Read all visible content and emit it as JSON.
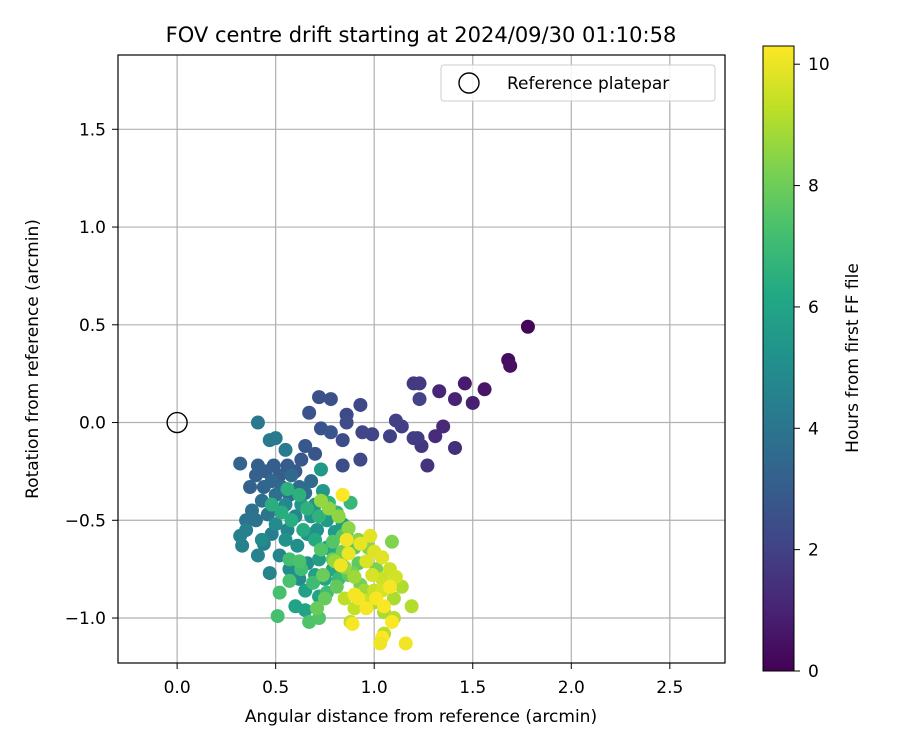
{
  "chart_data": {
    "type": "scatter",
    "title": "FOV centre drift starting at 2024/09/30 01:10:58",
    "xlabel": "Angular distance from reference (arcmin)",
    "ylabel": "Rotation from reference (arcmin)",
    "xlim": [
      -0.3,
      2.78
    ],
    "ylim": [
      -1.23,
      1.88
    ],
    "xticks": [
      "0.0",
      "0.5",
      "1.0",
      "1.5",
      "2.0",
      "2.5"
    ],
    "xtick_values": [
      0.0,
      0.5,
      1.0,
      1.5,
      2.0,
      2.5
    ],
    "yticks": [
      "−1.0",
      "−0.5",
      "0.0",
      "0.5",
      "1.0",
      "1.5"
    ],
    "ytick_values": [
      -1.0,
      -0.5,
      0.0,
      0.5,
      1.0,
      1.5
    ],
    "grid": true,
    "legend": {
      "placement": "top-right",
      "entries": [
        "Reference platepar"
      ]
    },
    "reference_point": {
      "x": 0.0,
      "y": 0.0,
      "style": "hollow-circle"
    },
    "colorbar": {
      "label": "Hours from first FF file",
      "min": 0,
      "max": 10.3,
      "ticks": [
        "0",
        "2",
        "4",
        "6",
        "8",
        "10"
      ],
      "tick_values": [
        0,
        2,
        4,
        6,
        8,
        10
      ],
      "colormap": "viridis"
    },
    "series": [
      {
        "points": [
          [
            1.78,
            0.49,
            0.1
          ],
          [
            1.68,
            0.32,
            0.3
          ],
          [
            1.69,
            0.29,
            0.4
          ],
          [
            1.56,
            0.17,
            0.6
          ],
          [
            1.46,
            0.2,
            0.8
          ],
          [
            1.5,
            0.1,
            0.9
          ],
          [
            1.41,
            0.12,
            1.0
          ],
          [
            1.33,
            0.16,
            1.1
          ],
          [
            1.35,
            -0.02,
            1.2
          ],
          [
            1.31,
            -0.07,
            1.3
          ],
          [
            1.41,
            -0.13,
            1.4
          ],
          [
            1.27,
            -0.22,
            1.5
          ],
          [
            1.24,
            -0.12,
            1.6
          ],
          [
            1.2,
            0.2,
            1.7
          ],
          [
            1.23,
            0.2,
            1.75
          ],
          [
            1.22,
            -0.08,
            1.8
          ],
          [
            1.2,
            -0.08,
            1.85
          ],
          [
            1.14,
            -0.02,
            1.9
          ],
          [
            1.11,
            0.01,
            1.95
          ],
          [
            1.08,
            -0.07,
            2.0
          ],
          [
            1.23,
            0.12,
            2.05
          ],
          [
            0.99,
            -0.06,
            2.1
          ],
          [
            0.94,
            -0.05,
            2.15
          ],
          [
            0.93,
            0.09,
            2.2
          ],
          [
            0.93,
            -0.19,
            2.25
          ],
          [
            0.86,
            0.04,
            2.3
          ],
          [
            0.86,
            0.0,
            2.35
          ],
          [
            0.84,
            -0.09,
            2.4
          ],
          [
            0.84,
            -0.22,
            2.45
          ],
          [
            0.78,
            0.12,
            2.5
          ],
          [
            0.72,
            0.13,
            2.55
          ],
          [
            0.67,
            0.05,
            2.6
          ],
          [
            0.73,
            -0.03,
            2.65
          ],
          [
            0.78,
            -0.05,
            2.7
          ],
          [
            0.7,
            -0.16,
            2.75
          ],
          [
            0.65,
            -0.12,
            2.8
          ],
          [
            0.63,
            -0.19,
            2.85
          ],
          [
            0.6,
            -0.25,
            2.9
          ],
          [
            0.56,
            -0.22,
            2.95
          ],
          [
            0.52,
            -0.27,
            3.0
          ],
          [
            0.49,
            -0.22,
            3.05
          ],
          [
            0.45,
            -0.25,
            3.1
          ],
          [
            0.41,
            -0.22,
            3.15
          ],
          [
            0.4,
            -0.27,
            3.2
          ],
          [
            0.37,
            -0.33,
            3.25
          ],
          [
            0.32,
            -0.21,
            3.3
          ],
          [
            0.44,
            -0.33,
            3.35
          ],
          [
            0.48,
            -0.3,
            3.4
          ],
          [
            0.53,
            -0.33,
            3.45
          ],
          [
            0.58,
            -0.27,
            3.5
          ],
          [
            0.62,
            -0.33,
            3.55
          ],
          [
            0.68,
            -0.3,
            3.6
          ],
          [
            0.65,
            -0.36,
            3.65
          ],
          [
            0.57,
            -0.37,
            3.7
          ],
          [
            0.5,
            -0.37,
            3.75
          ],
          [
            0.43,
            -0.4,
            3.8
          ],
          [
            0.38,
            -0.45,
            3.85
          ],
          [
            0.35,
            -0.5,
            3.9
          ],
          [
            0.4,
            -0.5,
            3.95
          ],
          [
            0.46,
            -0.47,
            4.0
          ],
          [
            0.52,
            -0.45,
            4.05
          ],
          [
            0.41,
            0.0,
            4.1
          ],
          [
            0.47,
            -0.09,
            4.15
          ],
          [
            0.5,
            -0.08,
            4.2
          ],
          [
            0.55,
            -0.14,
            4.25
          ],
          [
            0.48,
            -0.57,
            4.3
          ],
          [
            0.44,
            -0.62,
            4.35
          ],
          [
            0.35,
            -0.55,
            4.4
          ],
          [
            0.32,
            -0.58,
            4.45
          ],
          [
            0.33,
            -0.63,
            4.5
          ],
          [
            0.41,
            -0.68,
            4.55
          ],
          [
            0.47,
            -0.77,
            4.6
          ],
          [
            0.52,
            -0.68,
            4.65
          ],
          [
            0.56,
            -0.55,
            4.7
          ],
          [
            0.6,
            -0.48,
            4.75
          ],
          [
            0.55,
            -0.42,
            4.8
          ],
          [
            0.5,
            -0.52,
            4.85
          ],
          [
            0.43,
            -0.6,
            4.9
          ],
          [
            0.57,
            -0.75,
            4.95
          ],
          [
            0.62,
            -0.8,
            5.0
          ],
          [
            0.66,
            -0.72,
            5.05
          ],
          [
            0.61,
            -0.63,
            5.1
          ],
          [
            0.55,
            -0.6,
            5.15
          ],
          [
            0.66,
            -0.57,
            5.2
          ],
          [
            0.71,
            -0.55,
            5.25
          ],
          [
            0.68,
            -0.48,
            5.3
          ],
          [
            0.63,
            -0.42,
            5.35
          ],
          [
            0.7,
            -0.42,
            5.4
          ],
          [
            0.74,
            -0.35,
            5.45
          ],
          [
            0.73,
            -0.24,
            5.5
          ],
          [
            0.76,
            -0.5,
            5.55
          ],
          [
            0.8,
            -0.56,
            5.6
          ],
          [
            0.84,
            -0.52,
            5.65
          ],
          [
            0.76,
            -0.64,
            5.7
          ],
          [
            0.72,
            -0.7,
            5.75
          ],
          [
            0.7,
            -0.78,
            5.8
          ],
          [
            0.65,
            -0.86,
            5.85
          ],
          [
            0.6,
            -0.94,
            5.9
          ],
          [
            0.65,
            -0.96,
            5.95
          ],
          [
            0.72,
            -0.89,
            6.0
          ],
          [
            0.75,
            -0.8,
            6.05
          ],
          [
            0.79,
            -0.75,
            6.1
          ],
          [
            0.83,
            -0.69,
            6.15
          ],
          [
            0.78,
            -0.65,
            6.2
          ],
          [
            0.7,
            -0.6,
            6.25
          ],
          [
            0.64,
            -0.55,
            6.3
          ],
          [
            0.58,
            -0.5,
            6.35
          ],
          [
            0.53,
            -0.46,
            6.4
          ],
          [
            0.48,
            -0.42,
            6.45
          ],
          [
            0.56,
            -0.34,
            6.5
          ],
          [
            0.62,
            -0.37,
            6.55
          ],
          [
            0.66,
            -0.44,
            6.6
          ],
          [
            0.72,
            -0.48,
            6.65
          ],
          [
            0.77,
            -0.41,
            6.7
          ],
          [
            0.81,
            -0.46,
            6.75
          ],
          [
            0.88,
            -0.41,
            6.8
          ],
          [
            0.86,
            -0.56,
            6.85
          ],
          [
            0.88,
            -0.62,
            6.9
          ],
          [
            0.82,
            -0.8,
            6.95
          ],
          [
            0.76,
            -0.87,
            7.0
          ],
          [
            0.69,
            -0.82,
            7.05
          ],
          [
            0.63,
            -0.75,
            7.1
          ],
          [
            0.57,
            -0.7,
            7.15
          ],
          [
            0.51,
            -0.99,
            7.2
          ],
          [
            0.52,
            -0.87,
            7.25
          ],
          [
            0.57,
            -0.81,
            7.3
          ],
          [
            0.62,
            -0.71,
            7.35
          ],
          [
            0.67,
            -1.02,
            7.4
          ],
          [
            0.72,
            -1.0,
            7.45
          ],
          [
            0.73,
            -0.65,
            7.5
          ],
          [
            0.79,
            -0.61,
            7.55
          ],
          [
            0.84,
            -0.58,
            7.6
          ],
          [
            0.9,
            -0.64,
            7.65
          ],
          [
            0.92,
            -0.72,
            7.7
          ],
          [
            0.87,
            -0.78,
            7.75
          ],
          [
            0.81,
            -0.84,
            7.8
          ],
          [
            0.75,
            -0.9,
            7.85
          ],
          [
            0.71,
            -0.95,
            7.9
          ],
          [
            0.74,
            -0.78,
            7.95
          ],
          [
            0.79,
            -0.7,
            8.0
          ],
          [
            0.84,
            -0.66,
            8.05
          ],
          [
            0.89,
            -0.77,
            8.1
          ],
          [
            0.93,
            -0.83,
            8.15
          ],
          [
            0.97,
            -0.89,
            8.2
          ],
          [
            1.01,
            -0.75,
            8.25
          ],
          [
            1.04,
            -0.69,
            8.3
          ],
          [
            1.09,
            -0.61,
            8.35
          ],
          [
            0.97,
            -0.64,
            8.4
          ],
          [
            0.92,
            -0.6,
            8.45
          ],
          [
            0.87,
            -0.54,
            8.5
          ],
          [
            0.82,
            -0.48,
            8.55
          ],
          [
            0.77,
            -0.44,
            8.6
          ],
          [
            0.73,
            -0.4,
            8.65
          ],
          [
            0.8,
            -0.71,
            8.7
          ],
          [
            0.85,
            -0.74,
            8.75
          ],
          [
            0.9,
            -0.79,
            8.8
          ],
          [
            0.95,
            -0.86,
            8.85
          ],
          [
            1.0,
            -0.92,
            8.9
          ],
          [
            1.05,
            -0.97,
            8.95
          ],
          [
            1.1,
            -0.9,
            9.0
          ],
          [
            1.14,
            -0.84,
            9.05
          ],
          [
            1.19,
            -0.94,
            9.1
          ],
          [
            1.1,
            -1.0,
            9.15
          ],
          [
            1.05,
            -1.08,
            9.2
          ],
          [
            0.88,
            -1.02,
            9.25
          ],
          [
            0.85,
            -0.9,
            9.3
          ],
          [
            0.9,
            -0.95,
            9.35
          ],
          [
            0.95,
            -0.91,
            9.4
          ],
          [
            1.0,
            -0.86,
            9.45
          ],
          [
            1.04,
            -0.8,
            9.5
          ],
          [
            1.08,
            -0.75,
            9.55
          ],
          [
            1.11,
            -0.79,
            9.6
          ],
          [
            1.04,
            -0.86,
            9.65
          ],
          [
            0.99,
            -0.78,
            9.7
          ],
          [
            0.96,
            -0.71,
            9.75
          ],
          [
            1.0,
            -0.66,
            9.8
          ],
          [
            1.04,
            -0.69,
            9.85
          ],
          [
            0.98,
            -0.58,
            9.9
          ],
          [
            0.93,
            -0.62,
            9.95
          ],
          [
            0.87,
            -0.67,
            10.0
          ],
          [
            0.83,
            -0.73,
            10.05
          ],
          [
            0.86,
            -0.6,
            10.1
          ],
          [
            0.92,
            -0.9,
            10.15
          ],
          [
            0.96,
            -0.95,
            10.2
          ],
          [
            1.01,
            -0.9,
            10.22
          ],
          [
            1.05,
            -0.94,
            10.25
          ],
          [
            1.09,
            -1.02,
            10.27
          ],
          [
            1.04,
            -1.1,
            10.3
          ],
          [
            0.84,
            -0.37,
            10.25
          ],
          [
            0.89,
            -1.03,
            10.2
          ],
          [
            1.16,
            -1.13,
            10.1
          ],
          [
            1.03,
            -1.13,
            10.05
          ],
          [
            0.9,
            -0.88,
            10.15
          ],
          [
            1.08,
            -0.84,
            10.2
          ]
        ]
      }
    ]
  }
}
